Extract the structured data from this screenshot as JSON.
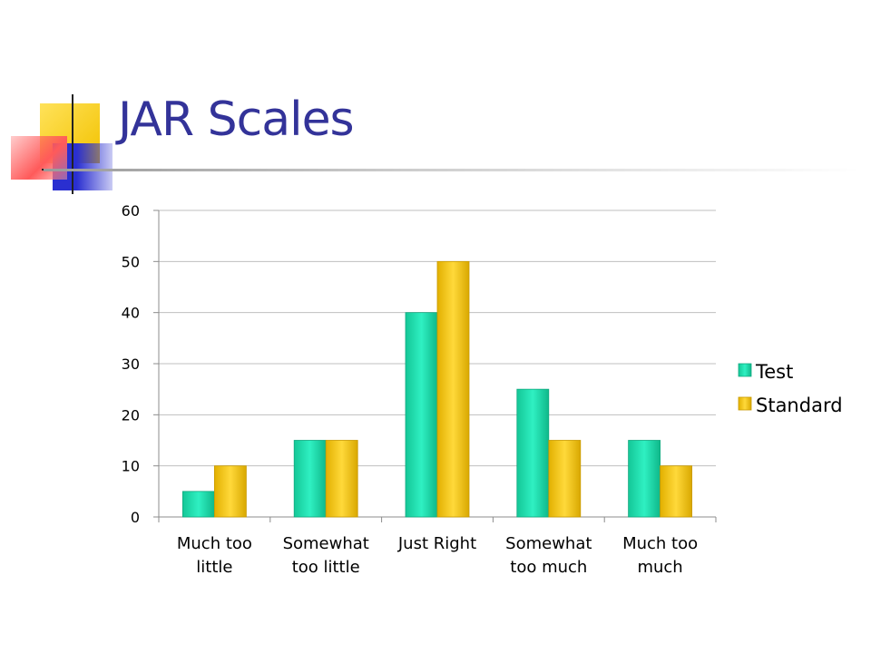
{
  "slide": {
    "title": "JAR Scales"
  },
  "colors": {
    "title": "#333399",
    "test": "#1fe0b0",
    "standard": "#f2c200",
    "gridline": "#bfbfbf",
    "deco_yellow": "#f7d200",
    "deco_blue": "#2a2fd0",
    "deco_red": "#ff5a5a"
  },
  "chart_data": {
    "type": "bar",
    "categories": [
      [
        "Much too",
        "little"
      ],
      [
        "Somewhat",
        "too little"
      ],
      [
        "Just Right"
      ],
      [
        "Somewhat",
        "too much"
      ],
      [
        "Much too",
        "much"
      ]
    ],
    "series": [
      {
        "name": "Test",
        "values": [
          5,
          15,
          40,
          25,
          15
        ]
      },
      {
        "name": "Standard",
        "values": [
          10,
          15,
          50,
          15,
          10
        ]
      }
    ],
    "title": "",
    "xlabel": "",
    "ylabel": "",
    "ylim": [
      0,
      60
    ],
    "yticks": [
      0,
      10,
      20,
      30,
      40,
      50,
      60
    ],
    "grid": true,
    "legend_position": "right"
  }
}
